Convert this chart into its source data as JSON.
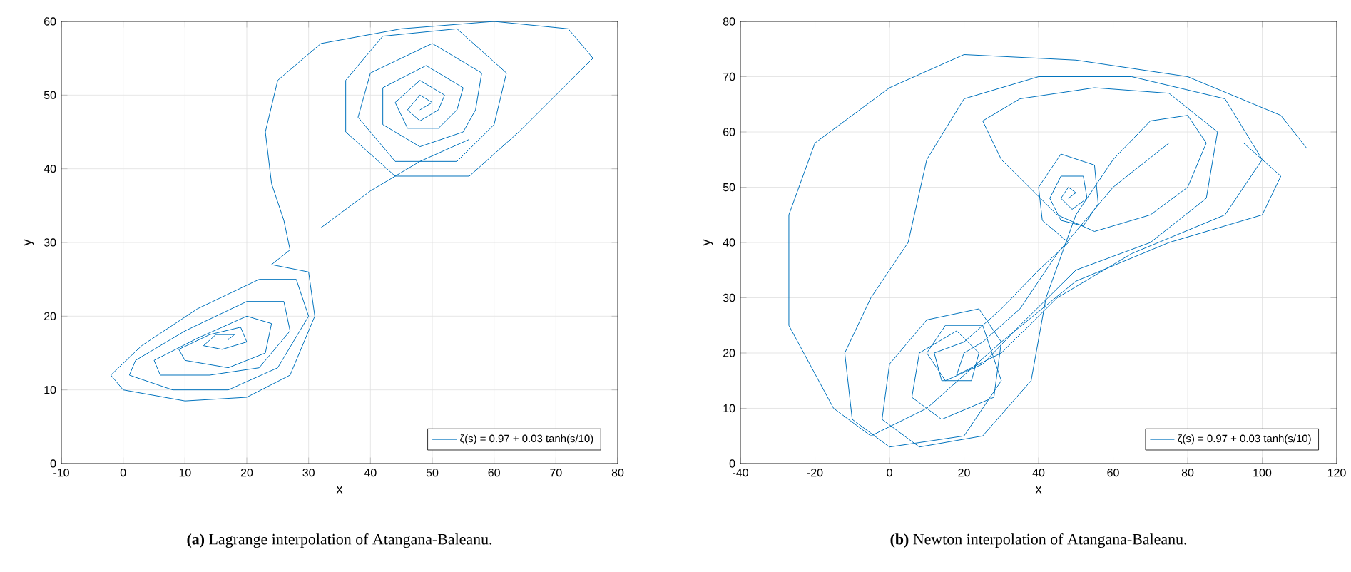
{
  "chart_data": [
    {
      "type": "line",
      "xlabel": "x",
      "ylabel": "y",
      "xlim": [
        -10,
        80
      ],
      "ylim": [
        0,
        60
      ],
      "xticks": [
        -10,
        0,
        10,
        20,
        30,
        40,
        50,
        60,
        70,
        80
      ],
      "yticks": [
        0,
        10,
        20,
        30,
        40,
        50,
        60
      ],
      "grid": true,
      "legend": "bottom right",
      "annotations": [
        "**(a)** Lagrange interpolation of Atangana-Baleanu."
      ],
      "series": [
        {
          "name": "ζ(s) = 0.97 + 0.03 tanh(s/10)",
          "color": "#0072bd",
          "x": [
            48,
            50,
            48,
            46,
            48,
            51,
            52,
            48,
            44,
            46,
            51,
            54,
            55,
            49,
            42,
            42,
            48,
            55,
            57,
            58,
            50,
            40,
            38,
            44,
            54,
            60,
            62,
            54,
            42,
            36,
            36,
            44,
            56,
            64,
            70,
            76,
            72,
            60,
            45,
            32,
            25,
            23,
            24,
            26,
            27,
            24,
            30,
            31,
            27,
            20,
            10,
            0,
            -2,
            3,
            12,
            22,
            28,
            30,
            25,
            17,
            8,
            1,
            2,
            10,
            20,
            26,
            27,
            22,
            14,
            6,
            5,
            12,
            20,
            24,
            23,
            17,
            10,
            9,
            14,
            19,
            20,
            16,
            13,
            15,
            18,
            17,
            17,
            null,
            32,
            40,
            48,
            56
          ],
          "values": [
            48,
            49,
            50,
            48,
            46.5,
            48,
            50,
            52,
            49,
            45.5,
            45.5,
            48,
            51,
            54,
            51,
            46,
            43,
            45,
            48,
            53,
            57,
            53,
            47,
            41,
            41,
            46,
            53,
            59,
            58,
            52,
            45,
            39,
            39,
            45,
            50,
            55,
            59,
            60,
            59,
            57,
            52,
            45,
            38,
            33,
            29,
            27,
            26,
            20,
            12,
            9,
            8.5,
            10,
            12,
            16,
            21,
            25,
            25,
            20,
            13,
            10,
            10,
            12,
            14,
            18,
            22,
            22,
            18,
            13,
            12,
            12,
            14,
            17,
            20,
            19,
            15,
            13,
            14,
            15.5,
            17.5,
            18.5,
            16.5,
            15.5,
            16,
            17.5,
            17.5,
            16.8,
            17,
            null,
            32,
            37,
            41,
            44
          ]
        }
      ]
    },
    {
      "type": "line",
      "xlabel": "x",
      "ylabel": "y",
      "xlim": [
        -40,
        120
      ],
      "ylim": [
        0,
        80
      ],
      "xticks": [
        -40,
        -20,
        0,
        20,
        40,
        60,
        80,
        100,
        120
      ],
      "yticks": [
        0,
        10,
        20,
        30,
        40,
        50,
        60,
        70,
        80
      ],
      "grid": true,
      "legend": "bottom right",
      "annotations": [
        "**(b)** Newton interpolation of Atangana-Baleanu."
      ],
      "series": [
        {
          "name": "ζ(s) = 0.97 + 0.03 tanh(s/10)",
          "color": "#0072bd",
          "x": [
            48,
            50,
            48,
            46,
            49,
            53,
            52,
            46,
            43,
            46,
            52,
            56,
            55,
            46,
            40,
            41,
            48,
            40,
            30,
            20,
            12,
            14,
            22,
            24,
            18,
            8,
            6,
            14,
            28,
            30,
            24,
            10,
            0,
            -2,
            8,
            25,
            38,
            42,
            50,
            60,
            70,
            80,
            85,
            80,
            70,
            55,
            45,
            30,
            25,
            35,
            55,
            75,
            88,
            85,
            70,
            50,
            35,
            25,
            15,
            10,
            15,
            25,
            30,
            20,
            0,
            -10,
            -12,
            -5,
            5,
            10,
            20,
            40,
            65,
            90,
            100,
            90,
            65,
            45,
            30,
            18,
            20,
            25,
            35,
            45,
            60,
            75,
            95,
            105,
            100,
            75,
            50,
            30,
            10,
            -5,
            -15,
            -27,
            -27,
            -20,
            0,
            20,
            50,
            80,
            105,
            112
          ],
          "values": [
            48,
            49,
            50,
            48,
            46,
            48,
            52,
            52,
            48,
            44,
            43,
            47,
            54,
            56,
            50,
            44,
            40,
            35,
            28,
            22,
            20,
            15,
            15,
            20,
            24,
            20,
            12,
            8,
            12,
            22,
            28,
            26,
            18,
            8,
            3,
            5,
            15,
            30,
            45,
            55,
            62,
            63,
            58,
            50,
            45,
            42,
            45,
            55,
            62,
            66,
            68,
            67,
            60,
            48,
            40,
            35,
            25,
            18,
            15,
            20,
            25,
            25,
            15,
            5,
            3,
            8,
            20,
            30,
            40,
            55,
            66,
            70,
            70,
            66,
            55,
            45,
            38,
            30,
            20,
            16,
            20,
            22,
            28,
            38,
            50,
            58,
            58,
            52,
            45,
            40,
            33,
            22,
            10,
            5,
            10,
            25,
            45,
            58,
            68,
            74,
            73,
            70,
            63,
            57
          ]
        }
      ]
    }
  ]
}
